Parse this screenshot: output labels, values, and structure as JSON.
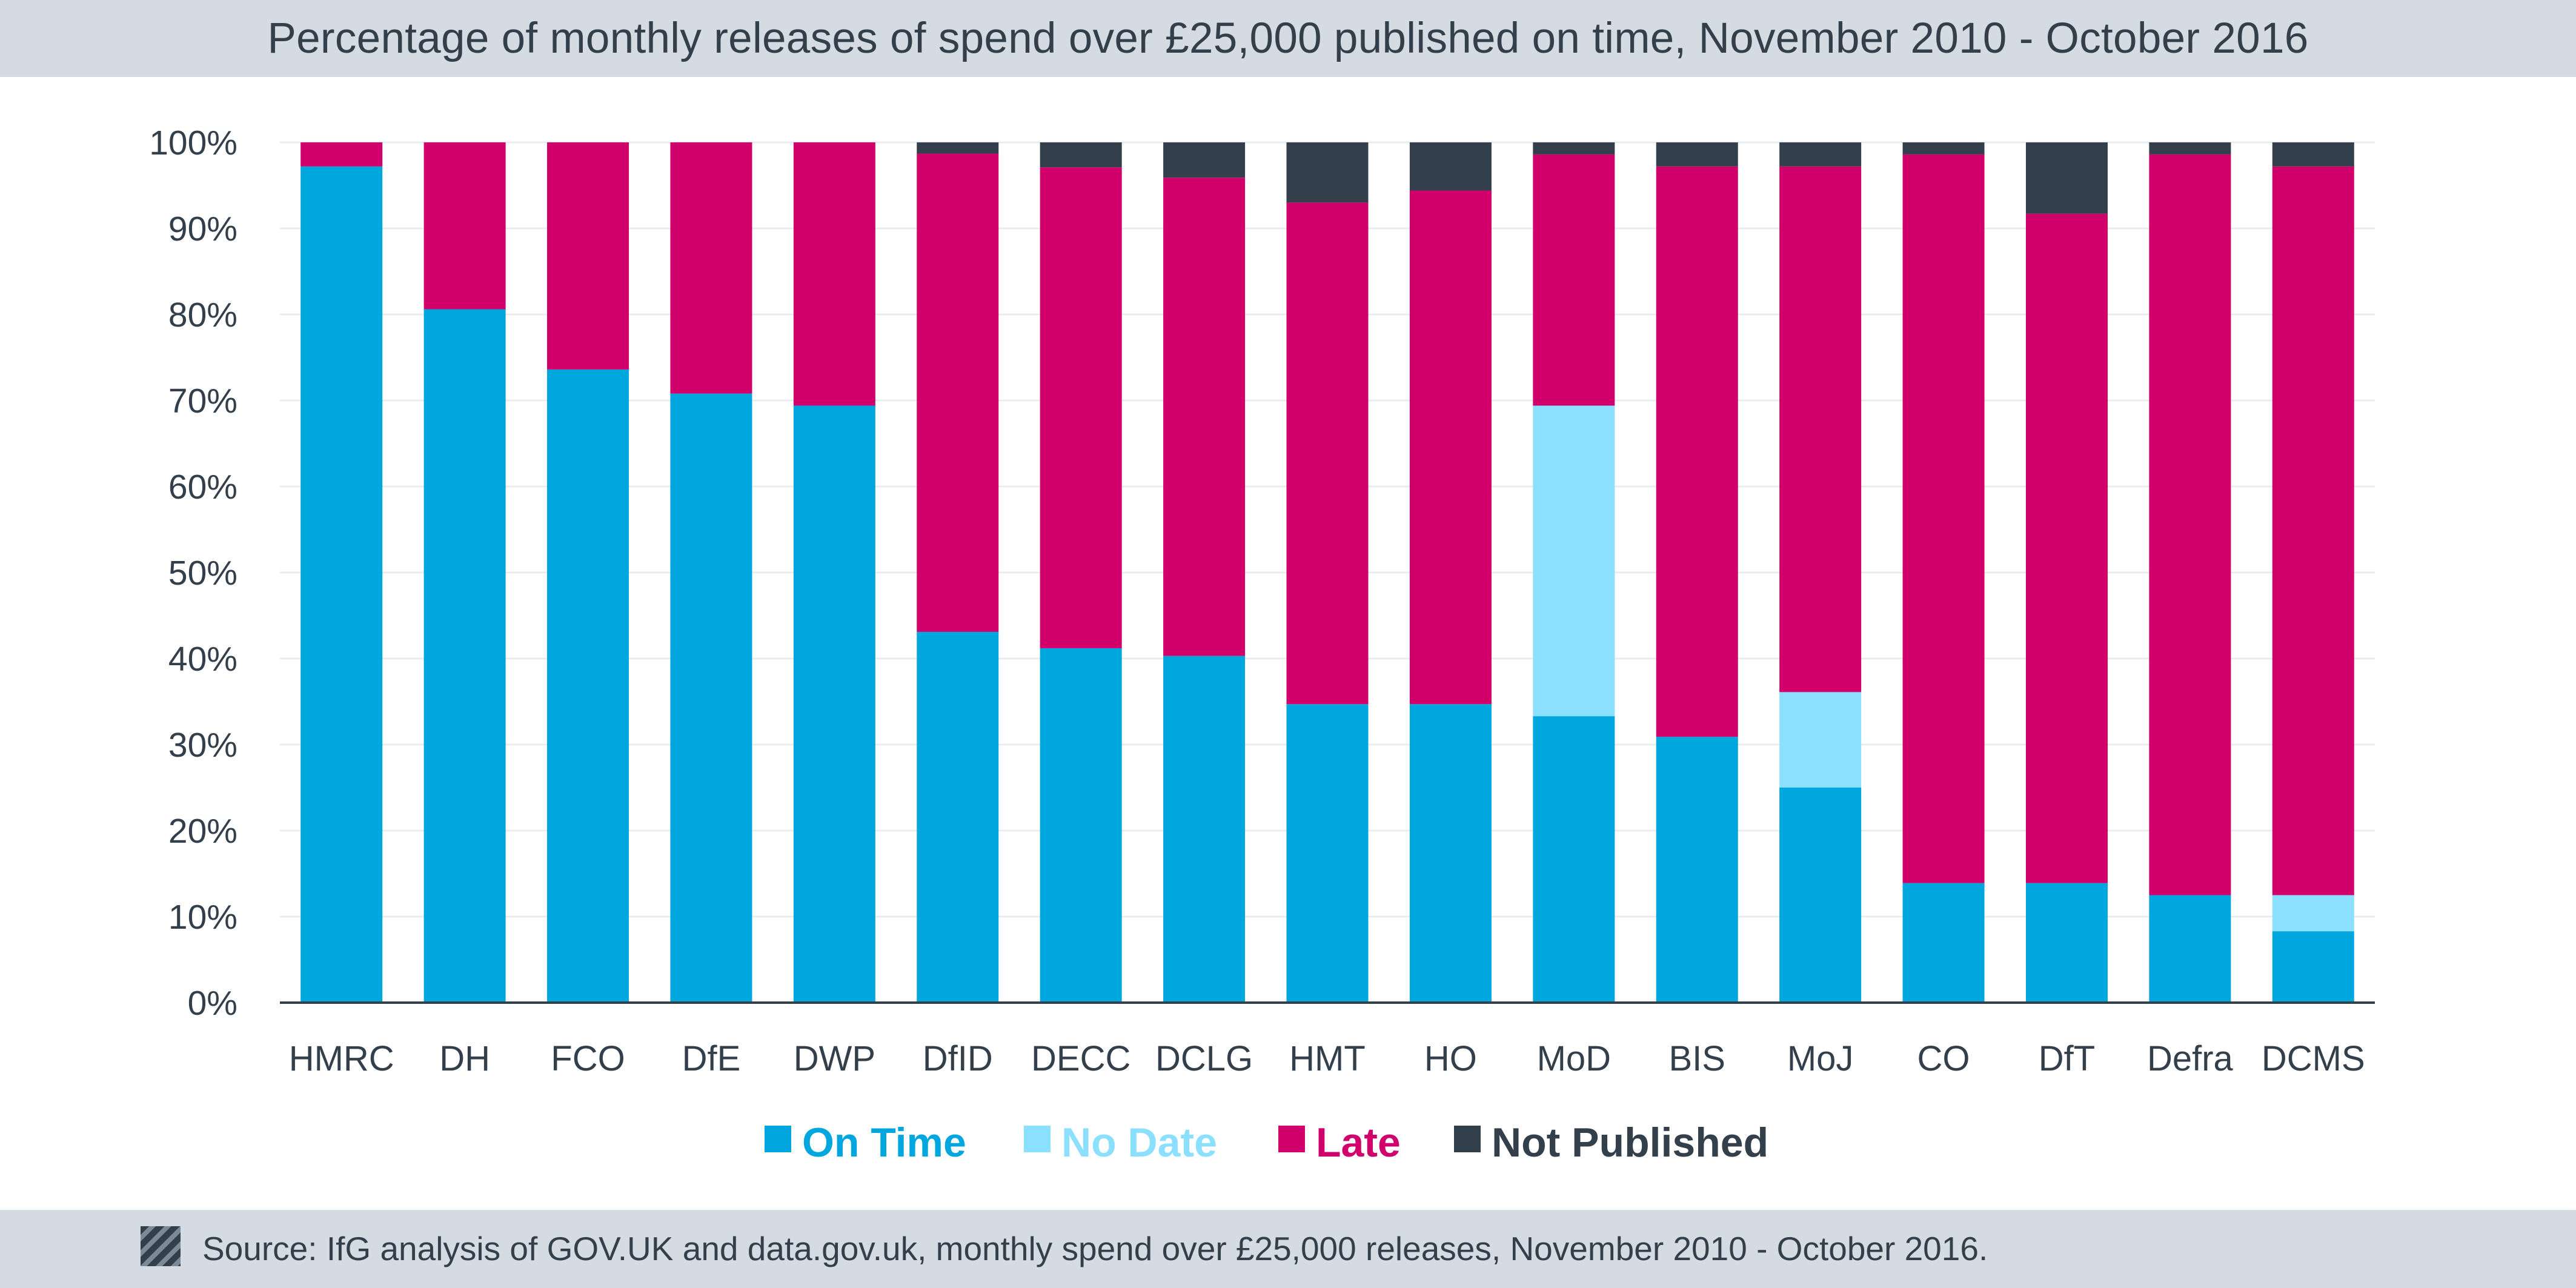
{
  "title": "Percentage of monthly releases of spend over £25,000 published on time, November 2010 - October 2016",
  "source": "Source: IfG analysis of GOV.UK and data.gov.uk, monthly spend over £25,000 releases, November 2010 - October 2016.",
  "colors": {
    "on_time": "#00a7df",
    "no_date": "#8ce0ff",
    "late": "#d2006b",
    "not_published": "#333f4b",
    "text": "#333f4b",
    "band": "#d4dbe2"
  },
  "chart_data": {
    "type": "bar",
    "stacked": true,
    "categories": [
      "HMRC",
      "DH",
      "FCO",
      "DfE",
      "DWP",
      "DfID",
      "DECC",
      "DCLG",
      "HMT",
      "HO",
      "MoD",
      "BIS",
      "MoJ",
      "CO",
      "DfT",
      "Defra",
      "DCMS"
    ],
    "series": [
      {
        "name": "On Time",
        "color": "#00a7df",
        "values": [
          97.2,
          80.6,
          73.6,
          70.8,
          69.4,
          43.1,
          41.2,
          40.3,
          34.7,
          34.7,
          33.3,
          30.9,
          25.0,
          13.9,
          13.9,
          12.5,
          8.3
        ]
      },
      {
        "name": "No Date",
        "color": "#8ce0ff",
        "values": [
          0,
          0,
          0,
          0,
          0,
          0,
          0,
          0,
          0,
          0,
          36.1,
          0,
          11.1,
          0,
          0,
          0,
          4.2
        ]
      },
      {
        "name": "Late",
        "color": "#d2006b",
        "values": [
          2.8,
          19.4,
          26.4,
          29.2,
          30.6,
          55.6,
          55.9,
          55.6,
          58.3,
          59.7,
          29.2,
          66.3,
          61.1,
          84.7,
          77.8,
          86.1,
          84.7
        ]
      },
      {
        "name": "Not Published",
        "color": "#333f4b",
        "values": [
          0,
          0,
          0,
          0,
          0,
          1.3,
          2.9,
          4.1,
          7.0,
          5.6,
          1.4,
          2.8,
          2.8,
          1.4,
          8.3,
          1.4,
          2.8
        ]
      }
    ],
    "yticks": [
      "0%",
      "10%",
      "20%",
      "30%",
      "40%",
      "50%",
      "60%",
      "70%",
      "80%",
      "90%",
      "100%"
    ],
    "ylim": [
      0,
      100
    ],
    "xlabel": "",
    "ylabel": "",
    "grid": true,
    "legend_position": "bottom"
  }
}
